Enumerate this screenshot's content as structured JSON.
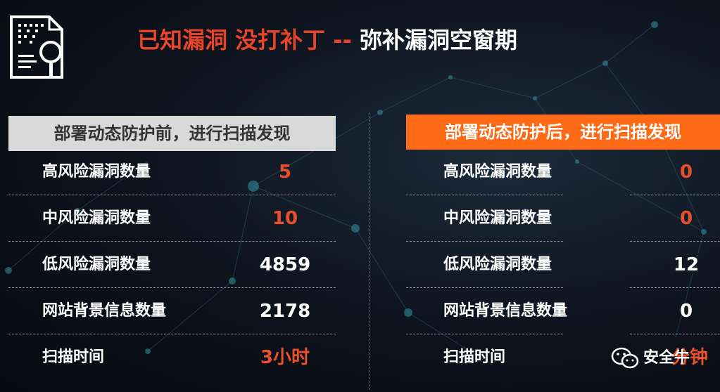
{
  "title": {
    "highlight": "已知漏洞 没打补丁",
    "separator": " -- ",
    "rest": "弥补漏洞空窗期"
  },
  "left_panel": {
    "header": "部署动态防护前，进行扫描发现",
    "rows": [
      {
        "label": "高风险漏洞数量",
        "value": "5",
        "color": "#e8502a"
      },
      {
        "label": "中风险漏洞数量",
        "value": "10",
        "color": "#e8502a"
      },
      {
        "label": "低风险漏洞数量",
        "value": "4859",
        "color": "#ffffff"
      },
      {
        "label": "网站背景信息数量",
        "value": "2178",
        "color": "#ffffff"
      },
      {
        "label": "扫描时间",
        "value": "3小时",
        "color": "#e8502a"
      }
    ]
  },
  "right_panel": {
    "header": "部署动态防护后，进行扫描发现",
    "rows": [
      {
        "label": "高风险漏洞数量",
        "value": "0",
        "color": "#e8502a"
      },
      {
        "label": "中风险漏洞数量",
        "value": "0",
        "color": "#e8502a"
      },
      {
        "label": "低风险漏洞数量",
        "value": "12",
        "color": "#ffffff"
      },
      {
        "label": "网站背景信息数量",
        "value": "0",
        "color": "#ffffff"
      },
      {
        "label": "扫描时间",
        "value": "分钟",
        "color": "#e8502a"
      }
    ]
  },
  "watermark": {
    "text": "安全牛",
    "icon": "wechat-icon"
  },
  "colors": {
    "accent_orange": "#ff6a17",
    "header_gray": "#d9d9d9",
    "title_red": "#e8442a"
  }
}
